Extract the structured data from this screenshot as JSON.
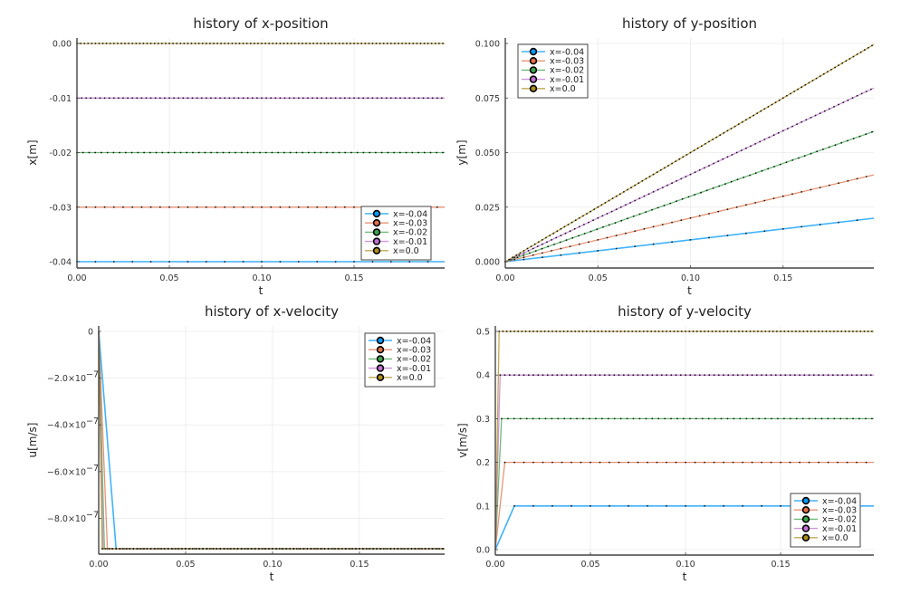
{
  "colors": [
    "#009af9",
    "#e26f46",
    "#3da44d",
    "#c271d2",
    "#ac8e18"
  ],
  "legend_entries": [
    "x=-0.04",
    "x=-0.03",
    "x=-0.02",
    "x=-0.01",
    "x=0.0"
  ],
  "chart_data": [
    {
      "type": "line",
      "title": "history of x-position",
      "xlabel": "t",
      "ylabel": "x[m]",
      "xlim": [
        0,
        0.199
      ],
      "ylim": [
        -0.04,
        0.0
      ],
      "xticks": [
        0,
        0.05,
        0.1,
        0.15
      ],
      "xtick_labels": [
        "0.00",
        "0.05",
        "0.10",
        "0.15"
      ],
      "yticks": [
        0.0,
        -0.01,
        -0.02,
        -0.03,
        -0.04
      ],
      "ytick_labels": [
        "0.00",
        "-0.01",
        "-0.02",
        "-0.03",
        "-0.04"
      ],
      "legend": "bottom-right",
      "grid": true,
      "series": [
        {
          "name": "x=-0.04",
          "kind": "const",
          "value": -0.04
        },
        {
          "name": "x=-0.03",
          "kind": "const",
          "value": -0.03
        },
        {
          "name": "x=-0.02",
          "kind": "const",
          "value": -0.02
        },
        {
          "name": "x=-0.01",
          "kind": "const",
          "value": -0.01
        },
        {
          "name": "x=0.0",
          "kind": "const",
          "value": 0.0
        }
      ]
    },
    {
      "type": "line",
      "title": "history of y-position",
      "xlabel": "t",
      "ylabel": "y[m]",
      "xlim": [
        0,
        0.199
      ],
      "ylim": [
        0,
        0.1
      ],
      "xticks": [
        0,
        0.05,
        0.1,
        0.15
      ],
      "xtick_labels": [
        "0.00",
        "0.05",
        "0.10",
        "0.15"
      ],
      "yticks": [
        0.0,
        0.025,
        0.05,
        0.075,
        0.1
      ],
      "ytick_labels": [
        "0.000",
        "0.025",
        "0.050",
        "0.075",
        "0.100"
      ],
      "legend": "top-left",
      "grid": true,
      "series": [
        {
          "name": "x=-0.04",
          "kind": "linear",
          "slope": 0.1
        },
        {
          "name": "x=-0.03",
          "kind": "linear",
          "slope": 0.2
        },
        {
          "name": "x=-0.02",
          "kind": "linear",
          "slope": 0.3
        },
        {
          "name": "x=-0.01",
          "kind": "linear",
          "slope": 0.4
        },
        {
          "name": "x=0.0",
          "kind": "linear",
          "slope": 0.5
        }
      ]
    },
    {
      "type": "line",
      "title": "history of x-velocity",
      "xlabel": "t",
      "ylabel": "u[m/s]",
      "xlim": [
        0,
        0.199
      ],
      "ylim": [
        -9.3e-07,
        0
      ],
      "xticks": [
        0,
        0.05,
        0.1,
        0.15
      ],
      "xtick_labels": [
        "0.00",
        "0.05",
        "0.10",
        "0.15"
      ],
      "yticks": [
        0,
        -2e-07,
        -4e-07,
        -6e-07,
        -8e-07
      ],
      "ytick_labels": [
        "0",
        "−2.0×10",
        "−4.0×10",
        "−6.0×10",
        "−8.0×10"
      ],
      "ytick_exponent": "−7",
      "legend": "top-right",
      "grid": true,
      "series": [
        {
          "name": "x=-0.04",
          "kind": "step",
          "start": 0,
          "value": -9.3e-07,
          "ramp_end": 0.01
        },
        {
          "name": "x=-0.03",
          "kind": "step",
          "start": 0,
          "value": -9.3e-07,
          "ramp_end": 0.005
        },
        {
          "name": "x=-0.02",
          "kind": "step",
          "start": 0,
          "value": -9.3e-07,
          "ramp_end": 0.0033
        },
        {
          "name": "x=-0.01",
          "kind": "step",
          "start": 0,
          "value": -9.3e-07,
          "ramp_end": 0.0025
        },
        {
          "name": "x=0.0",
          "kind": "step",
          "start": 0,
          "value": -9.3e-07,
          "ramp_end": 0.002
        }
      ]
    },
    {
      "type": "line",
      "title": "history of y-velocity",
      "xlabel": "t",
      "ylabel": "v[m/s]",
      "xlim": [
        0,
        0.199
      ],
      "ylim": [
        0,
        0.5
      ],
      "xticks": [
        0,
        0.05,
        0.1,
        0.15
      ],
      "xtick_labels": [
        "0.00",
        "0.05",
        "0.10",
        "0.15"
      ],
      "yticks": [
        0.0,
        0.1,
        0.2,
        0.3,
        0.4,
        0.5
      ],
      "ytick_labels": [
        "0.0",
        "0.1",
        "0.2",
        "0.3",
        "0.4",
        "0.5"
      ],
      "legend": "bottom-right",
      "grid": true,
      "series": [
        {
          "name": "x=-0.04",
          "kind": "step",
          "start": 0,
          "value": 0.1,
          "ramp_end": 0.01
        },
        {
          "name": "x=-0.03",
          "kind": "step",
          "start": 0,
          "value": 0.2,
          "ramp_end": 0.005
        },
        {
          "name": "x=-0.02",
          "kind": "step",
          "start": 0,
          "value": 0.3,
          "ramp_end": 0.0033
        },
        {
          "name": "x=-0.01",
          "kind": "step",
          "start": 0,
          "value": 0.4,
          "ramp_end": 0.0025
        },
        {
          "name": "x=0.0",
          "kind": "step",
          "start": 0,
          "value": 0.5,
          "ramp_end": 0.002
        }
      ]
    }
  ]
}
